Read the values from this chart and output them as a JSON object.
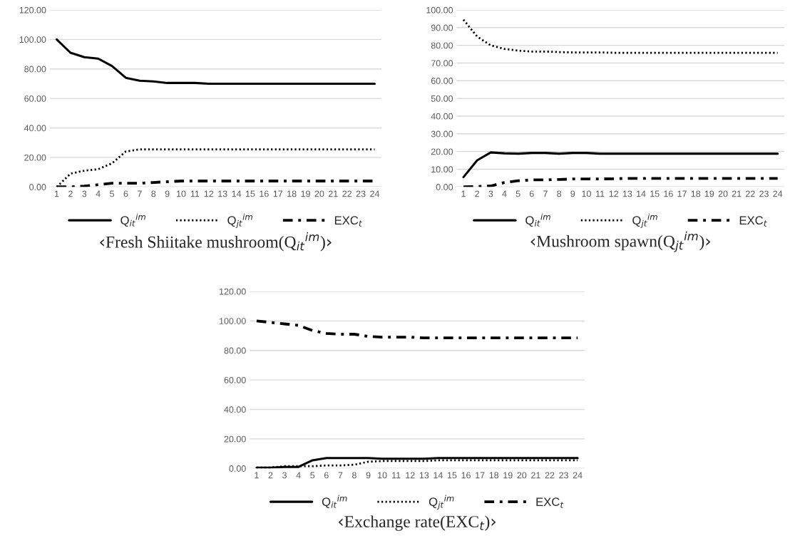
{
  "chart_data": [
    {
      "type": "line",
      "title": "‹Fresh Shiitake mushroom(Q$_{it}$$^{im}$)›",
      "categories": [
        "1",
        "2",
        "3",
        "4",
        "5",
        "6",
        "7",
        "8",
        "9",
        "10",
        "11",
        "12",
        "13",
        "14",
        "15",
        "16",
        "17",
        "18",
        "19",
        "20",
        "21",
        "22",
        "23",
        "24"
      ],
      "series": [
        {
          "name": "Q$_{it}$$^{im}$",
          "color": "#000000",
          "line_style": "solid",
          "values": [
            100,
            91,
            88,
            87,
            82,
            74,
            72,
            71.5,
            70.5,
            70.5,
            70.5,
            70,
            70,
            70,
            70,
            70,
            70,
            70,
            70,
            70,
            70,
            70,
            70,
            70
          ]
        },
        {
          "name": "Q$_{jt}$$^{im}$",
          "color": "#000000",
          "line_style": "dotted",
          "values": [
            0,
            9,
            11,
            12,
            16,
            24,
            25.5,
            25.5,
            25.5,
            25.5,
            25.5,
            25.5,
            25.5,
            25.5,
            25.5,
            25.5,
            25.5,
            25.5,
            25.5,
            25.5,
            25.5,
            25.5,
            25.5,
            25.5
          ]
        },
        {
          "name": "EXC$_{t}$",
          "color": "#000000",
          "line_style": "dashed",
          "values": [
            0,
            0,
            0.5,
            1.5,
            2.5,
            2.5,
            2.5,
            3,
            3.5,
            4,
            4,
            4,
            4,
            4,
            4,
            4,
            4,
            4,
            4,
            4,
            4,
            4,
            4,
            4
          ]
        }
      ],
      "ylim": [
        0,
        120
      ],
      "yticks": [
        {
          "value": 0,
          "label": "0.00"
        },
        {
          "value": 20,
          "label": "20.00"
        },
        {
          "value": 40,
          "label": "40.00"
        },
        {
          "value": 60,
          "label": "60.00"
        },
        {
          "value": 80,
          "label": "80.00"
        },
        {
          "value": 100,
          "label": "100.00"
        },
        {
          "value": 120,
          "label": "120.00"
        }
      ],
      "grid": "y",
      "legend": "bottom",
      "marker": "none"
    },
    {
      "type": "line",
      "title": "‹Mushroom spawn(Q$_{jt}$$^{im}$)›",
      "categories": [
        "1",
        "2",
        "3",
        "4",
        "5",
        "6",
        "7",
        "8",
        "9",
        "10",
        "11",
        "12",
        "13",
        "14",
        "15",
        "16",
        "17",
        "18",
        "19",
        "20",
        "21",
        "22",
        "23",
        "24"
      ],
      "series": [
        {
          "name": "Q$_{it}$$^{im}$",
          "color": "#000000",
          "line_style": "solid",
          "values": [
            5.5,
            15,
            19.5,
            19,
            18.8,
            19.2,
            19.2,
            18.8,
            19.2,
            19.2,
            18.8,
            18.8,
            18.8,
            18.8,
            18.8,
            18.8,
            18.8,
            18.8,
            18.8,
            18.8,
            18.8,
            18.8,
            18.8,
            18.8
          ]
        },
        {
          "name": "Q$_{jt}$$^{im}$",
          "color": "#000000",
          "line_style": "dotted",
          "values": [
            94.5,
            85,
            80,
            78,
            77,
            76.5,
            76.5,
            76.2,
            76,
            76,
            76,
            75.8,
            75.8,
            75.8,
            75.8,
            75.8,
            75.8,
            75.8,
            75.8,
            75.8,
            75.8,
            75.8,
            75.8,
            75.8
          ]
        },
        {
          "name": "EXC$_{t}$",
          "color": "#000000",
          "line_style": "dashed",
          "values": [
            0,
            0.2,
            0.5,
            2.5,
            3.5,
            4,
            4,
            4.2,
            4.5,
            4.5,
            4.5,
            4.6,
            4.8,
            4.8,
            4.8,
            4.8,
            4.8,
            4.8,
            4.8,
            4.8,
            4.8,
            4.8,
            4.8,
            4.8
          ]
        }
      ],
      "ylim": [
        0,
        100
      ],
      "yticks": [
        {
          "value": 0,
          "label": "0.00"
        },
        {
          "value": 10,
          "label": "10.00"
        },
        {
          "value": 20,
          "label": "20.00"
        },
        {
          "value": 30,
          "label": "30.00"
        },
        {
          "value": 40,
          "label": "40.00"
        },
        {
          "value": 50,
          "label": "50.00"
        },
        {
          "value": 60,
          "label": "60.00"
        },
        {
          "value": 70,
          "label": "70.00"
        },
        {
          "value": 80,
          "label": "80.00"
        },
        {
          "value": 90,
          "label": "90.00"
        },
        {
          "value": 100,
          "label": "100.00"
        }
      ],
      "grid": "y",
      "legend": "bottom",
      "marker": "none"
    },
    {
      "type": "line",
      "title": "‹Exchange rate(EXC$_{t}$)›",
      "categories": [
        "1",
        "2",
        "3",
        "4",
        "5",
        "6",
        "7",
        "8",
        "9",
        "10",
        "11",
        "12",
        "13",
        "14",
        "15",
        "16",
        "17",
        "18",
        "19",
        "20",
        "21",
        "22",
        "23",
        "24"
      ],
      "series": [
        {
          "name": "Q$_{it}$$^{im}$",
          "color": "#000000",
          "line_style": "solid",
          "values": [
            0.5,
            0.5,
            1,
            1,
            5.5,
            7,
            7,
            7,
            7,
            6.5,
            6.5,
            6.5,
            6.5,
            7,
            7,
            7,
            7,
            7,
            7,
            7,
            7,
            7,
            7,
            7
          ]
        },
        {
          "name": "Q$_{jt}$$^{im}$",
          "color": "#000000",
          "line_style": "dotted",
          "values": [
            0.5,
            0.5,
            1.5,
            1.5,
            1.5,
            2,
            2,
            2.5,
            4.5,
            5,
            5,
            5,
            5,
            5.5,
            5.5,
            5.5,
            5.5,
            5.5,
            5.5,
            5.5,
            5.5,
            5.5,
            5.5,
            5.5
          ]
        },
        {
          "name": "EXC$_{t}$",
          "color": "#000000",
          "line_style": "dashed",
          "values": [
            100,
            99,
            98,
            97,
            93.5,
            91.5,
            91,
            91,
            89.5,
            89,
            89,
            89,
            88.5,
            88.5,
            88.5,
            88.5,
            88.5,
            88.5,
            88.5,
            88.5,
            88.5,
            88.5,
            88.5,
            88.5
          ]
        }
      ],
      "ylim": [
        0,
        120
      ],
      "yticks": [
        {
          "value": 0,
          "label": "0.00"
        },
        {
          "value": 20,
          "label": "20.00"
        },
        {
          "value": 40,
          "label": "40.00"
        },
        {
          "value": 60,
          "label": "60.00"
        },
        {
          "value": 80,
          "label": "80.00"
        },
        {
          "value": 100,
          "label": "100.00"
        },
        {
          "value": 120,
          "label": "120.00"
        }
      ],
      "grid": "y",
      "legend": "bottom",
      "marker": "none"
    }
  ]
}
